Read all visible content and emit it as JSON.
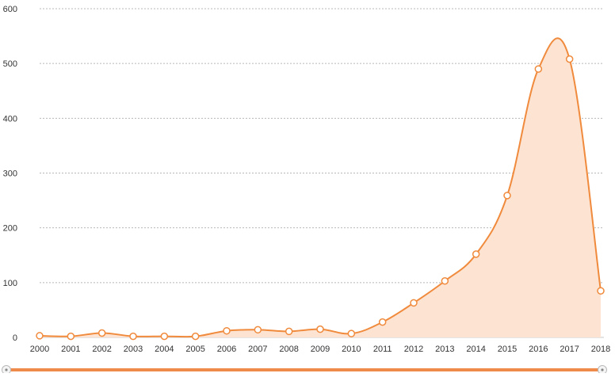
{
  "chart_data": {
    "type": "area",
    "x": [
      "2000",
      "2001",
      "2002",
      "2003",
      "2004",
      "2005",
      "2006",
      "2007",
      "2008",
      "2009",
      "2010",
      "2011",
      "2012",
      "2013",
      "2014",
      "2015",
      "2016",
      "2017",
      "2018"
    ],
    "series": [
      {
        "values": [
          3,
          2,
          8,
          2,
          2,
          2,
          12,
          14,
          11,
          15,
          7,
          28,
          63,
          103,
          152,
          259,
          490,
          508,
          85
        ]
      }
    ],
    "ylim": [
      0,
      600
    ],
    "yticks": [
      0,
      100,
      200,
      300,
      400,
      500,
      600
    ],
    "grid": true,
    "legend": "none",
    "has_zoom_slider": true
  },
  "colors": {
    "line": "#f08a3c",
    "fill": "#fde3d1",
    "marker_fill": "#ffffff",
    "slider": "#ee8a4a",
    "slider_handle": "#b8b8b8"
  }
}
